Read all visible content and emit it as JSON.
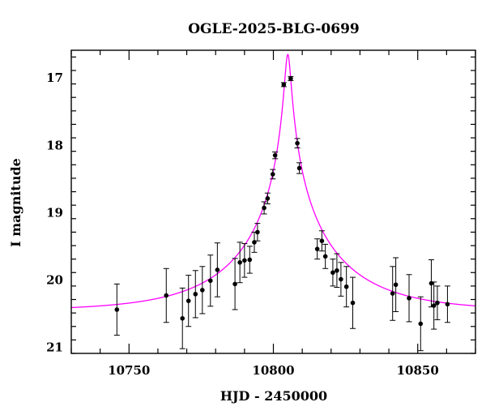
{
  "chart_data": {
    "type": "scatter",
    "title": "OGLE-2025-BLG-0699",
    "xlabel": "HJD - 2450000",
    "ylabel": "I magnitude",
    "xlim": [
      10730,
      10870
    ],
    "ylim": [
      21.1,
      16.6
    ],
    "y_inverted": true,
    "grid": false,
    "x_ticks": [
      10750,
      10800,
      10850
    ],
    "x_tick_labels": [
      "10750",
      "10800",
      "10850"
    ],
    "y_ticks": [
      17,
      18,
      19,
      20,
      21
    ],
    "y_tick_labels": [
      "17",
      "18",
      "19",
      "20",
      "21"
    ],
    "series": [
      {
        "kind": "errorbar-points",
        "color": "#000000",
        "points": [
          {
            "x": 10745.8,
            "y": 20.45,
            "err": 0.38
          },
          {
            "x": 10762.9,
            "y": 20.24,
            "err": 0.4
          },
          {
            "x": 10768.5,
            "y": 20.58,
            "err": 0.45
          },
          {
            "x": 10770.6,
            "y": 20.32,
            "err": 0.38
          },
          {
            "x": 10773.0,
            "y": 20.22,
            "err": 0.35
          },
          {
            "x": 10775.4,
            "y": 20.16,
            "err": 0.35
          },
          {
            "x": 10778.2,
            "y": 20.02,
            "err": 0.38
          },
          {
            "x": 10780.6,
            "y": 19.86,
            "err": 0.4
          },
          {
            "x": 10786.7,
            "y": 20.07,
            "err": 0.38
          },
          {
            "x": 10788.4,
            "y": 19.75,
            "err": 0.3
          },
          {
            "x": 10790.0,
            "y": 19.72,
            "err": 0.25
          },
          {
            "x": 10791.8,
            "y": 19.71,
            "err": 0.2
          },
          {
            "x": 10793.4,
            "y": 19.45,
            "err": 0.15
          },
          {
            "x": 10794.5,
            "y": 19.3,
            "err": 0.13
          },
          {
            "x": 10796.8,
            "y": 18.94,
            "err": 0.09
          },
          {
            "x": 10798.0,
            "y": 18.8,
            "err": 0.08
          },
          {
            "x": 10799.8,
            "y": 18.44,
            "err": 0.07
          },
          {
            "x": 10800.6,
            "y": 18.16,
            "err": 0.05
          },
          {
            "x": 10803.6,
            "y": 17.11,
            "err": 0.03
          },
          {
            "x": 10806.0,
            "y": 17.02,
            "err": 0.03
          },
          {
            "x": 10808.3,
            "y": 17.98,
            "err": 0.07
          },
          {
            "x": 10809.0,
            "y": 18.35,
            "err": 0.08
          },
          {
            "x": 10815.2,
            "y": 19.55,
            "err": 0.15
          },
          {
            "x": 10816.8,
            "y": 19.43,
            "err": 0.15
          },
          {
            "x": 10818.0,
            "y": 19.66,
            "err": 0.18
          },
          {
            "x": 10820.6,
            "y": 19.9,
            "err": 0.2
          },
          {
            "x": 10822.0,
            "y": 19.87,
            "err": 0.25
          },
          {
            "x": 10823.4,
            "y": 20.0,
            "err": 0.25
          },
          {
            "x": 10825.3,
            "y": 20.11,
            "err": 0.3
          },
          {
            "x": 10827.5,
            "y": 20.35,
            "err": 0.38
          },
          {
            "x": 10841.3,
            "y": 20.21,
            "err": 0.4
          },
          {
            "x": 10842.4,
            "y": 20.08,
            "err": 0.4
          },
          {
            "x": 10847.0,
            "y": 20.28,
            "err": 0.35
          },
          {
            "x": 10851.0,
            "y": 20.66,
            "err": 0.4
          },
          {
            "x": 10854.7,
            "y": 20.06,
            "err": 0.35
          },
          {
            "x": 10855.6,
            "y": 20.39,
            "err": 0.35
          },
          {
            "x": 10856.8,
            "y": 20.35,
            "err": 0.25
          },
          {
            "x": 10860.3,
            "y": 20.37,
            "err": 0.27
          }
        ]
      },
      {
        "kind": "model-curve",
        "color": "#ff00ff",
        "model": "paczynski",
        "params": {
          "t0": 10805.0,
          "tE": 34.5,
          "u0": 0.03,
          "I_base": 20.47
        }
      }
    ]
  }
}
